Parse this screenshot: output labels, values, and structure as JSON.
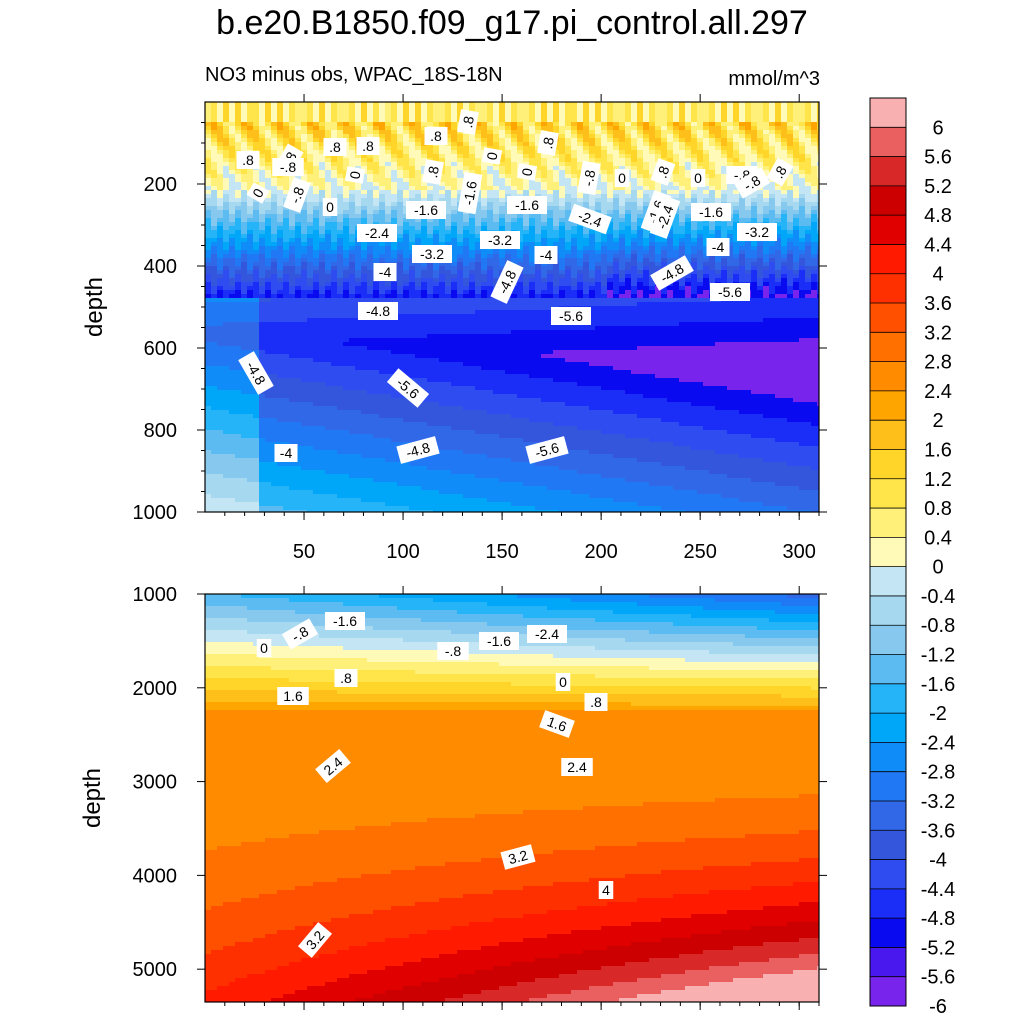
{
  "chart_data": {
    "type": "contour",
    "title": "b.e20.B1850.f09_g17.pi_control.all.297",
    "subtitle": "NO3 minus obs, WPAC_18S-18N",
    "units": "mmol/m^3",
    "colorbar": {
      "labels": [
        "6",
        "5.6",
        "5.2",
        "4.8",
        "4.4",
        "4",
        "3.6",
        "3.2",
        "2.8",
        "2.4",
        "2",
        "1.6",
        "1.2",
        "0.8",
        "0.4",
        "0",
        "-0.4",
        "-0.8",
        "-1.2",
        "-1.6",
        "-2",
        "-2.4",
        "-2.8",
        "-3.2",
        "-3.6",
        "-4",
        "-4.4",
        "-4.8",
        "-5.2",
        "-5.6",
        "-6"
      ],
      "colors": [
        "#f8b0b0",
        "#ea6060",
        "#d82828",
        "#cc0000",
        "#e00000",
        "#ff1a00",
        "#ff3000",
        "#ff5000",
        "#ff7000",
        "#ff8c00",
        "#ffa500",
        "#ffbf1a",
        "#ffd52a",
        "#ffe54a",
        "#fff07a",
        "#fffab8",
        "#c4e6f4",
        "#a6d8f0",
        "#86c8ee",
        "#5cbcf2",
        "#26b4f8",
        "#00a6f8",
        "#108cf8",
        "#2078f4",
        "#3068e8",
        "#3456dc",
        "#2f4cf0",
        "#1a2ef8",
        "#0a0af0",
        "#4818ee",
        "#7824ec"
      ]
    },
    "panels": [
      {
        "name": "upper",
        "xlim": [
          0,
          310
        ],
        "ylim": [
          1000,
          0
        ],
        "ylabel": "depth",
        "xticks": [
          50,
          100,
          150,
          200,
          250,
          300
        ],
        "yticks": [
          200,
          400,
          600,
          800,
          1000
        ],
        "contour_labels": [
          ".8",
          ".8",
          ".8",
          ".8",
          ".8",
          ".8",
          ".8",
          ".8",
          ".8",
          ".8",
          "0",
          "0",
          "0",
          "0",
          "0",
          "0",
          "0",
          "-.8",
          "-.8",
          "-.8",
          "-.8",
          "-.8",
          "-1.6",
          "-1.6",
          "-1.6",
          "-1.6",
          "-1.6",
          "-2.4",
          "-2.4",
          "-2.4",
          "-3.2",
          "-3.2",
          "-3.2",
          "-4",
          "-4",
          "-4",
          "-4",
          "-4.8",
          "-4.8",
          "-4.8",
          "-4.8",
          "-4.8",
          "-5.6",
          "-5.6",
          "-5.6",
          "-5.6"
        ]
      },
      {
        "name": "lower",
        "xlim": [
          0,
          310
        ],
        "ylim": [
          5350,
          1000
        ],
        "ylabel": "depth",
        "yticks": [
          1000,
          2000,
          3000,
          4000,
          5000
        ],
        "contour_labels": [
          "-1.6",
          "-.8",
          "0",
          "-1.6",
          "-.8",
          "-2.4",
          ".8",
          "0",
          ".8",
          "1.6",
          "1.6",
          "2.4",
          "2.4",
          "3.2",
          "4",
          "3.2"
        ]
      }
    ]
  }
}
